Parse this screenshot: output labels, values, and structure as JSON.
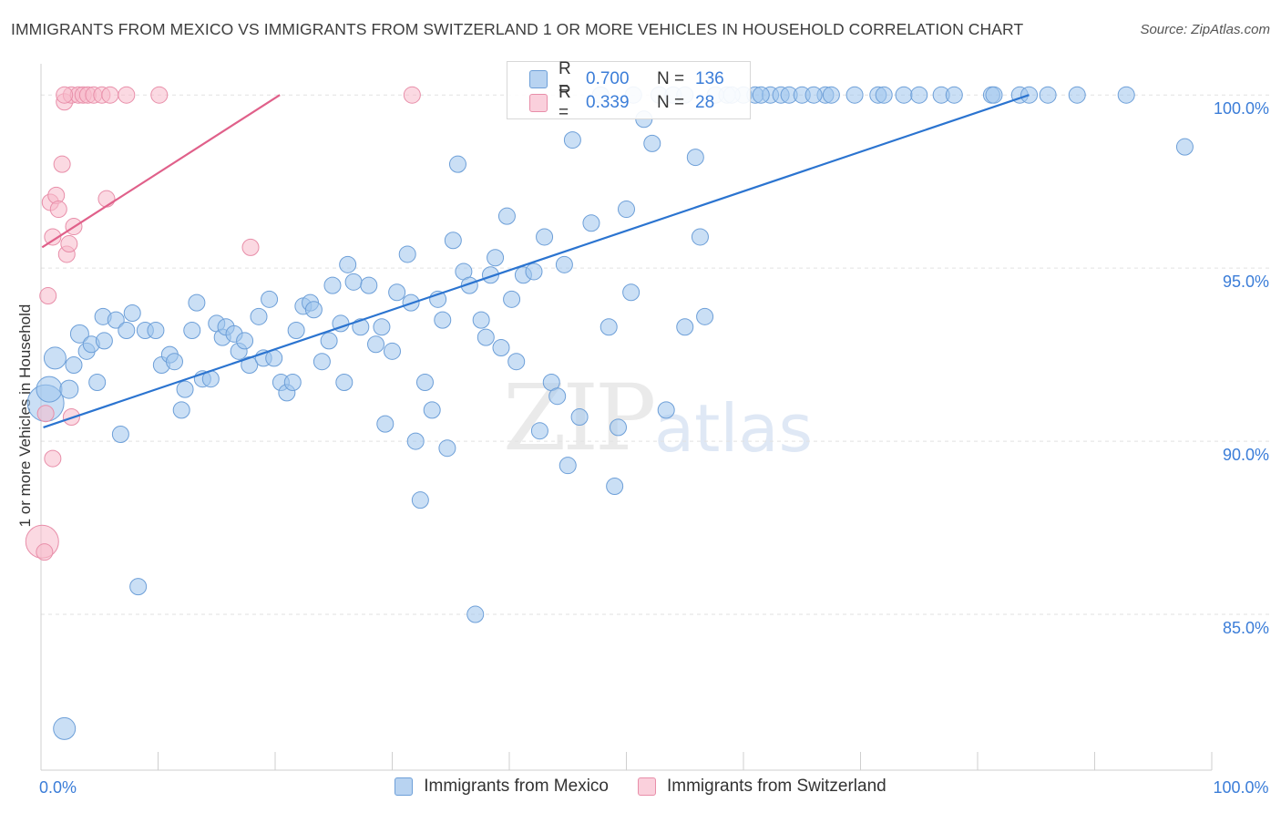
{
  "chart_data": {
    "type": "scatter",
    "title": "IMMIGRANTS FROM MEXICO VS IMMIGRANTS FROM SWITZERLAND 1 OR MORE VEHICLES IN HOUSEHOLD CORRELATION CHART",
    "source": "Source: ZipAtlas.com",
    "ylabel": "1 or more Vehicles in Household",
    "xlabel": "",
    "xlim": [
      0,
      100
    ],
    "ylim": [
      80.5,
      100.9
    ],
    "x_tick_labels": [
      {
        "value": 0,
        "label": "0.0%"
      },
      {
        "value": 100,
        "label": "100.0%"
      }
    ],
    "y_tick_labels": [
      {
        "value": 100,
        "label": "100.0%"
      },
      {
        "value": 95,
        "label": "95.0%"
      },
      {
        "value": 90,
        "label": "90.0%"
      },
      {
        "value": 85,
        "label": "85.0%"
      }
    ],
    "watermark": {
      "zip": "ZIP",
      "atlas": "atlas"
    },
    "legend_stats": [
      {
        "r_label": "R =",
        "r_value": "0.700",
        "n_label": "N =",
        "n_value": "136"
      },
      {
        "r_label": "R =",
        "r_value": "0.339",
        "n_label": "N =",
        "n_value": "28"
      }
    ],
    "series": [
      {
        "name": "Immigrants from Mexico",
        "color": "#9fc4ec",
        "stroke": "#6d9fd8",
        "line_color": "#2b74d0",
        "trend": {
          "x1": 0.2,
          "y1": 90.4,
          "x2": 84.4,
          "y2": 100.0
        },
        "points": [
          [
            0.4,
            91.1,
            20
          ],
          [
            0.7,
            91.5,
            14
          ],
          [
            1.2,
            92.4,
            12
          ],
          [
            2.4,
            91.5,
            10
          ],
          [
            2.8,
            92.2,
            9
          ],
          [
            3.3,
            93.1,
            10
          ],
          [
            3.9,
            92.6,
            9
          ],
          [
            4.3,
            92.8,
            9
          ],
          [
            4.8,
            91.7,
            9
          ],
          [
            5.4,
            92.9,
            9
          ],
          [
            5.3,
            93.6,
            9
          ],
          [
            6.4,
            93.5,
            9
          ],
          [
            7.3,
            93.2,
            9
          ],
          [
            7.8,
            93.7,
            9
          ],
          [
            8.9,
            93.2,
            9
          ],
          [
            9.8,
            93.2,
            9
          ],
          [
            10.3,
            92.2,
            9
          ],
          [
            11.0,
            92.5,
            9
          ],
          [
            11.4,
            92.3,
            9
          ],
          [
            12.0,
            90.9,
            9
          ],
          [
            12.3,
            91.5,
            9
          ],
          [
            12.9,
            93.2,
            9
          ],
          [
            13.3,
            94.0,
            9
          ],
          [
            13.8,
            91.8,
            9
          ],
          [
            14.5,
            91.8,
            9
          ],
          [
            15.0,
            93.4,
            9
          ],
          [
            15.5,
            93.0,
            9
          ],
          [
            15.8,
            93.3,
            9
          ],
          [
            16.5,
            93.1,
            9
          ],
          [
            16.9,
            92.6,
            9
          ],
          [
            17.4,
            92.9,
            9
          ],
          [
            17.8,
            92.2,
            9
          ],
          [
            18.6,
            93.6,
            9
          ],
          [
            19.0,
            92.4,
            9
          ],
          [
            19.5,
            94.1,
            9
          ],
          [
            19.9,
            92.4,
            9
          ],
          [
            20.5,
            91.7,
            9
          ],
          [
            21.0,
            91.4,
            9
          ],
          [
            21.5,
            91.7,
            9
          ],
          [
            21.8,
            93.2,
            9
          ],
          [
            22.4,
            93.9,
            9
          ],
          [
            23.0,
            94.0,
            9
          ],
          [
            23.3,
            93.8,
            9
          ],
          [
            24.0,
            92.3,
            9
          ],
          [
            24.6,
            92.9,
            9
          ],
          [
            24.9,
            94.5,
            9
          ],
          [
            25.6,
            93.4,
            9
          ],
          [
            25.9,
            91.7,
            9
          ],
          [
            26.2,
            95.1,
            9
          ],
          [
            26.7,
            94.6,
            9
          ],
          [
            27.3,
            93.3,
            9
          ],
          [
            28.0,
            94.5,
            9
          ],
          [
            28.6,
            92.8,
            9
          ],
          [
            29.1,
            93.3,
            9
          ],
          [
            29.4,
            90.5,
            9
          ],
          [
            30.0,
            92.6,
            9
          ],
          [
            30.4,
            94.3,
            9
          ],
          [
            31.3,
            95.4,
            9
          ],
          [
            31.6,
            94.0,
            9
          ],
          [
            32.0,
            90.0,
            9
          ],
          [
            32.4,
            88.3,
            9
          ],
          [
            32.8,
            91.7,
            9
          ],
          [
            33.4,
            90.9,
            9
          ],
          [
            33.9,
            94.1,
            9
          ],
          [
            34.3,
            93.5,
            9
          ],
          [
            34.7,
            89.8,
            9
          ],
          [
            35.2,
            95.8,
            9
          ],
          [
            35.6,
            98.0,
            9
          ],
          [
            36.1,
            94.9,
            9
          ],
          [
            36.6,
            94.5,
            9
          ],
          [
            37.1,
            85.0,
            9
          ],
          [
            37.6,
            93.5,
            9
          ],
          [
            38.0,
            93.0,
            9
          ],
          [
            38.4,
            94.8,
            9
          ],
          [
            38.8,
            95.3,
            9
          ],
          [
            39.3,
            92.7,
            9
          ],
          [
            39.8,
            96.5,
            9
          ],
          [
            40.2,
            94.1,
            9
          ],
          [
            40.6,
            92.3,
            9
          ],
          [
            41.2,
            94.8,
            9
          ],
          [
            42.1,
            94.9,
            9
          ],
          [
            42.6,
            90.3,
            9
          ],
          [
            43.0,
            95.9,
            9
          ],
          [
            43.6,
            91.7,
            9
          ],
          [
            44.1,
            91.3,
            9
          ],
          [
            44.7,
            95.1,
            9
          ],
          [
            45.0,
            89.3,
            9
          ],
          [
            45.4,
            98.7,
            9
          ],
          [
            46.0,
            90.7,
            9
          ],
          [
            47.0,
            96.3,
            9
          ],
          [
            47.8,
            100.0,
            9
          ],
          [
            48.5,
            93.3,
            9
          ],
          [
            49.0,
            88.7,
            9
          ],
          [
            49.3,
            90.4,
            9
          ],
          [
            50.0,
            96.7,
            9
          ],
          [
            50.4,
            94.3,
            9
          ],
          [
            50.6,
            100.0,
            9
          ],
          [
            51.5,
            99.3,
            9
          ],
          [
            52.2,
            98.6,
            9
          ],
          [
            52.8,
            100.0,
            9
          ],
          [
            53.4,
            90.9,
            9
          ],
          [
            54.0,
            100.0,
            9
          ],
          [
            55.0,
            93.3,
            9
          ],
          [
            55.9,
            98.2,
            9
          ],
          [
            56.3,
            95.9,
            9
          ],
          [
            56.7,
            93.6,
            9
          ],
          [
            57.6,
            100.0,
            9
          ],
          [
            58.6,
            100.0,
            9
          ],
          [
            60.0,
            100.0,
            9
          ],
          [
            61.0,
            100.0,
            9
          ],
          [
            62.3,
            100.0,
            9
          ],
          [
            63.2,
            100.0,
            9
          ],
          [
            63.9,
            100.0,
            9
          ],
          [
            65.0,
            100.0,
            9
          ],
          [
            67.0,
            100.0,
            9
          ],
          [
            67.5,
            100.0,
            9
          ],
          [
            69.5,
            100.0,
            9
          ],
          [
            71.5,
            100.0,
            9
          ],
          [
            73.7,
            100.0,
            9
          ],
          [
            75.0,
            100.0,
            9
          ],
          [
            76.9,
            100.0,
            9
          ],
          [
            78.0,
            100.0,
            9
          ],
          [
            81.2,
            100.0,
            9
          ],
          [
            81.4,
            100.0,
            9
          ],
          [
            83.6,
            100.0,
            9
          ],
          [
            84.4,
            100.0,
            9
          ],
          [
            88.5,
            100.0,
            9
          ],
          [
            92.7,
            100.0,
            9
          ],
          [
            97.7,
            98.5,
            9
          ],
          [
            2.0,
            81.7,
            12
          ],
          [
            8.3,
            85.8,
            9
          ],
          [
            6.8,
            90.2,
            9
          ],
          [
            55.0,
            100.0,
            9
          ],
          [
            59.0,
            100.0,
            9
          ],
          [
            61.5,
            100.0,
            9
          ],
          [
            66.0,
            100.0,
            9
          ],
          [
            72.0,
            100.0,
            9
          ],
          [
            86.0,
            100.0,
            9
          ]
        ]
      },
      {
        "name": "Immigrants from Switzerland",
        "color": "#f7b9cb",
        "stroke": "#e88ea9",
        "line_color": "#e0608a",
        "trend": {
          "x1": 0.1,
          "y1": 95.6,
          "x2": 20.4,
          "y2": 100.0
        },
        "points": [
          [
            0.1,
            87.1,
            18
          ],
          [
            0.3,
            86.8,
            9
          ],
          [
            0.4,
            90.8,
            9
          ],
          [
            0.6,
            94.2,
            9
          ],
          [
            0.8,
            96.9,
            9
          ],
          [
            1.0,
            95.9,
            9
          ],
          [
            1.3,
            97.1,
            9
          ],
          [
            1.5,
            96.7,
            9
          ],
          [
            1.8,
            98.0,
            9
          ],
          [
            2.0,
            99.8,
            9
          ],
          [
            2.2,
            95.4,
            9
          ],
          [
            2.4,
            95.7,
            9
          ],
          [
            2.6,
            100.0,
            9
          ],
          [
            2.8,
            96.2,
            9
          ],
          [
            3.2,
            100.0,
            9
          ],
          [
            3.6,
            100.0,
            9
          ],
          [
            4.0,
            100.0,
            9
          ],
          [
            4.5,
            100.0,
            9
          ],
          [
            5.2,
            100.0,
            9
          ],
          [
            5.6,
            97.0,
            9
          ],
          [
            5.9,
            100.0,
            9
          ],
          [
            7.3,
            100.0,
            9
          ],
          [
            10.1,
            100.0,
            9
          ],
          [
            17.9,
            95.6,
            9
          ],
          [
            31.7,
            100.0,
            9
          ],
          [
            2.6,
            90.7,
            9
          ],
          [
            1.0,
            89.5,
            9
          ],
          [
            2.0,
            100.0,
            9
          ]
        ]
      }
    ]
  }
}
